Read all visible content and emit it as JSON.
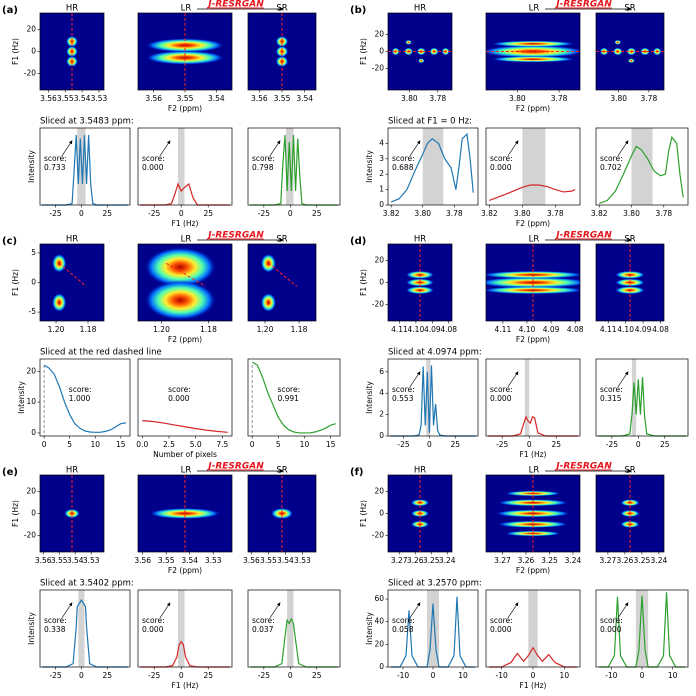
{
  "panels": [
    {
      "label": "(a)",
      "method": "J-RESRGAN",
      "slice": "Sliced at 3.5483 ppm:"
    },
    {
      "label": "(b)",
      "method": "J-RESRGAN",
      "slice": "Sliced at F1 = 0 Hz:"
    },
    {
      "label": "(c)",
      "method": "J-RESRGAN",
      "slice": "Sliced at the red dashed line"
    },
    {
      "label": "(d)",
      "method": "J-RESRGAN",
      "slice": "Sliced at 4.0974 ppm:"
    },
    {
      "label": "(e)",
      "method": "J-RESRGAN",
      "slice": "Sliced at 3.5402 ppm:"
    },
    {
      "label": "(f)",
      "method": "J-RESRGAN",
      "slice": "Sliced at 3.2570 ppm:"
    }
  ],
  "chart_data": [
    {
      "type": "heatmap",
      "title": "HR",
      "xlim": [
        3.565,
        3.527
      ],
      "xticks": [
        3.56,
        3.55,
        3.54,
        3.53
      ],
      "ylim": [
        -35,
        35
      ],
      "yticks": [
        -20,
        0,
        20
      ],
      "ylabel": "F1 (Hz)"
    },
    {
      "type": "heatmap",
      "title": "LR",
      "xlim": [
        3.565,
        3.535
      ],
      "xticks": [
        3.56,
        3.55,
        3.54
      ],
      "ylim": [
        -35,
        35
      ],
      "xlabel": "F2 (ppm)"
    },
    {
      "type": "heatmap",
      "title": "SR",
      "xlim": [
        3.565,
        3.535
      ],
      "xticks": [
        3.56,
        3.55,
        3.54
      ],
      "ylim": [
        -35,
        35
      ]
    },
    {
      "type": "line",
      "color": "#1f77b4",
      "x": [
        -38,
        -15,
        -9,
        -7,
        -5,
        -3,
        -1,
        1,
        3,
        5,
        7,
        9,
        11,
        15,
        45
      ],
      "values": [
        0,
        0,
        0.02,
        0.5,
        1,
        0.3,
        0.95,
        0.3,
        1,
        0.3,
        1,
        0.3,
        0.02,
        0,
        0
      ],
      "xlim": [
        -40,
        47
      ],
      "ylim": [
        0,
        1.1
      ],
      "xticks": [
        -25,
        0,
        25
      ],
      "span": [
        -4,
        4
      ],
      "annotation": [
        "score:",
        "0.733"
      ],
      "ylabel": "Intensity"
    },
    {
      "type": "line",
      "color": "#d62728",
      "x": [
        -38,
        -15,
        -9,
        -6,
        -3,
        0,
        3,
        7,
        11,
        15,
        45
      ],
      "values": [
        0,
        0,
        0.02,
        0.15,
        0.3,
        0.2,
        0.25,
        0.3,
        0.1,
        0,
        0
      ],
      "xlim": [
        -40,
        47
      ],
      "ylim": [
        0,
        1.1
      ],
      "xticks": [
        -25,
        0,
        25
      ],
      "span": [
        -3,
        3
      ],
      "annotation": [
        "score:",
        "0.000"
      ],
      "xlabel": "F1 (Hz)"
    },
    {
      "type": "line",
      "color": "#2ca02c",
      "x": [
        -38,
        -15,
        -9,
        -7,
        -5,
        -3,
        -1,
        1,
        3,
        5,
        7,
        9,
        11,
        15,
        45
      ],
      "values": [
        0,
        0,
        0.02,
        0.6,
        1,
        0.2,
        0.9,
        0.2,
        1,
        0.2,
        0.95,
        0.4,
        0.02,
        0,
        0
      ],
      "xlim": [
        -40,
        47
      ],
      "ylim": [
        0,
        1.1
      ],
      "xticks": [
        -25,
        0,
        25
      ],
      "span": [
        -4,
        3
      ],
      "annotation": [
        "score:",
        "0.798"
      ]
    },
    {
      "type": "heatmap",
      "title": "HR",
      "xlim": [
        3.815,
        3.77
      ],
      "xticks": [
        {
          "value": 3.8,
          "label": "3.80"
        },
        3.78
      ],
      "ylim": [
        -45,
        45
      ],
      "yticks": [
        -20,
        0,
        20
      ],
      "ylabel": "F1 (Hz)"
    },
    {
      "type": "heatmap",
      "title": "LR",
      "xlim": [
        3.815,
        3.77
      ],
      "xticks": [
        {
          "value": 3.8,
          "label": "3.80"
        },
        3.78
      ],
      "ylim": [
        -45,
        45
      ],
      "xlabel": "F2 (ppm)"
    },
    {
      "type": "heatmap",
      "title": "SR",
      "xlim": [
        3.815,
        3.77
      ],
      "xticks": [
        {
          "value": 3.8,
          "label": "3.80"
        },
        3.78
      ],
      "ylim": [
        -45,
        45
      ]
    },
    {
      "type": "line",
      "color": "#1f77b4",
      "x": [
        3.82,
        3.815,
        3.81,
        3.805,
        3.8,
        3.797,
        3.794,
        3.79,
        3.786,
        3.782,
        3.779,
        3.777,
        3.775,
        3.772,
        3.77,
        3.768
      ],
      "values": [
        0.2,
        0.4,
        1.0,
        2.2,
        3.3,
        4.0,
        4.3,
        4.0,
        3.0,
        2.4,
        1.0,
        2.5,
        4.3,
        4.6,
        3.0,
        0.8
      ],
      "xlim": [
        3.822,
        3.765
      ],
      "ylim": [
        0,
        5
      ],
      "yticks": [
        0,
        1,
        2,
        3,
        4
      ],
      "xticks": [
        3.82,
        {
          "value": 3.8,
          "label": "3.80"
        },
        3.78
      ],
      "span": [
        3.8,
        3.787
      ],
      "annotation": [
        "score:",
        "0.688"
      ],
      "ylabel": "Intensity"
    },
    {
      "type": "line",
      "color": "#d62728",
      "x": [
        3.82,
        3.81,
        3.8,
        3.795,
        3.79,
        3.785,
        3.78,
        3.775,
        3.77,
        3.768
      ],
      "values": [
        0.3,
        0.7,
        1.15,
        1.3,
        1.3,
        1.2,
        1.0,
        0.85,
        0.9,
        1.0
      ],
      "xlim": [
        3.822,
        3.765
      ],
      "ylim": [
        0,
        5
      ],
      "xticks": [
        3.82,
        {
          "value": 3.8,
          "label": "3.80"
        },
        3.78
      ],
      "span": [
        3.8,
        3.786
      ],
      "annotation": [
        "score:",
        "0.000"
      ],
      "xlabel": "F2 (ppm)"
    },
    {
      "type": "line",
      "color": "#2ca02c",
      "x": [
        3.82,
        3.815,
        3.81,
        3.805,
        3.8,
        3.797,
        3.794,
        3.79,
        3.786,
        3.782,
        3.779,
        3.777,
        3.775,
        3.772,
        3.77,
        3.768
      ],
      "values": [
        0.1,
        0.3,
        0.9,
        2.0,
        3.2,
        3.8,
        3.6,
        3.0,
        2.2,
        1.9,
        2.0,
        3.5,
        4.4,
        4.0,
        2.0,
        0.5
      ],
      "xlim": [
        3.822,
        3.765
      ],
      "ylim": [
        0,
        5
      ],
      "xticks": [
        3.82,
        {
          "value": 3.8,
          "label": "3.80"
        },
        3.78
      ],
      "span": [
        3.8,
        3.787
      ],
      "annotation": [
        "score:",
        "0.702"
      ]
    },
    {
      "type": "heatmap",
      "title": "HR",
      "xlim": [
        1.21,
        1.17
      ],
      "xticks": [
        {
          "value": 1.2,
          "label": "1.20"
        },
        1.18
      ],
      "ylim": [
        -6.5,
        6.5
      ],
      "yticks": [
        -5,
        0,
        5
      ],
      "ylabel": "F1 (Hz)"
    },
    {
      "type": "heatmap",
      "title": "LR",
      "xlim": [
        1.21,
        1.17
      ],
      "xticks": [
        {
          "value": 1.2,
          "label": "1.20"
        },
        1.18
      ],
      "ylim": [
        -6.5,
        6.5
      ],
      "xlabel": "F2 (ppm)"
    },
    {
      "type": "heatmap",
      "title": "SR",
      "xlim": [
        1.21,
        1.17
      ],
      "xticks": [
        {
          "value": 1.2,
          "label": "1.20"
        },
        1.18
      ],
      "ylim": [
        -6.5,
        6.5
      ]
    },
    {
      "type": "line",
      "color": "#1f77b4",
      "x": [
        0,
        1,
        2,
        3,
        4,
        5,
        6,
        7,
        8,
        9,
        10,
        11,
        12,
        13,
        14,
        15,
        16
      ],
      "values": [
        22,
        21,
        19,
        15,
        10,
        6,
        3,
        1.5,
        0.6,
        0.3,
        0.2,
        0.2,
        0.5,
        1,
        2,
        3,
        3.3
      ],
      "xlim": [
        -0.8,
        16.8
      ],
      "ylim": [
        -1,
        24
      ],
      "yticks": [
        0,
        10,
        20
      ],
      "xticks": [
        0,
        5,
        10,
        15
      ],
      "annotation": [
        "score:",
        "1.000"
      ],
      "ylabel": "Intensity"
    },
    {
      "type": "line",
      "color": "#d62728",
      "x": [
        0,
        1,
        2,
        3,
        4,
        5,
        6,
        7,
        8
      ],
      "values": [
        4,
        3.7,
        3.2,
        2.6,
        2,
        1.4,
        0.9,
        0.5,
        0.2
      ],
      "xlim": [
        -0.4,
        8.4
      ],
      "ylim": [
        -1,
        24
      ],
      "xticks": [
        {
          "value": 0,
          "label": "0.0"
        },
        2.5,
        {
          "value": 5,
          "label": "5.0"
        },
        7.5
      ],
      "annotation": [
        "score:",
        "0.000"
      ],
      "xlabel": "Number of pixels"
    },
    {
      "type": "line",
      "color": "#2ca02c",
      "x": [
        0,
        1,
        2,
        3,
        4,
        5,
        6,
        7,
        8,
        9,
        10,
        11,
        12,
        13,
        14,
        15,
        16
      ],
      "values": [
        23,
        22,
        18,
        13,
        9,
        5,
        2.5,
        1,
        0.3,
        0,
        0,
        0,
        0.3,
        0.8,
        1.5,
        2.5,
        3
      ],
      "xlim": [
        -0.8,
        16.8
      ],
      "ylim": [
        -1,
        24
      ],
      "xticks": [
        0,
        5,
        10,
        15
      ],
      "annotation": [
        "score:",
        "0.991"
      ]
    },
    {
      "type": "heatmap",
      "title": "HR",
      "xlim": [
        4.117,
        4.078
      ],
      "xticks": [
        4.11,
        {
          "value": 4.1,
          "label": "4.10"
        },
        4.09,
        {
          "value": 4.08,
          "label": "4.08"
        }
      ],
      "ylim": [
        -35,
        35
      ],
      "yticks": [
        -20,
        0,
        20
      ],
      "ylabel": "F1 (Hz)"
    },
    {
      "type": "heatmap",
      "title": "LR",
      "xlim": [
        4.117,
        4.078
      ],
      "xticks": [
        4.11,
        {
          "value": 4.1,
          "label": "4.10"
        },
        4.09,
        {
          "value": 4.08,
          "label": "4.08"
        }
      ],
      "ylim": [
        -35,
        35
      ],
      "xlabel": "F2 (ppm)"
    },
    {
      "type": "heatmap",
      "title": "SR",
      "xlim": [
        4.117,
        4.078
      ],
      "xticks": [
        4.11,
        {
          "value": 4.1,
          "label": "4.10"
        },
        4.09,
        {
          "value": 4.08,
          "label": "4.08"
        }
      ],
      "ylim": [
        -35,
        35
      ]
    },
    {
      "type": "line",
      "color": "#1f77b4",
      "x": [
        -38,
        -15,
        -10,
        -8,
        -6,
        -4,
        -2,
        0,
        2,
        4,
        6,
        8,
        10,
        15,
        45
      ],
      "values": [
        0,
        0,
        0.1,
        1,
        6.5,
        1,
        6,
        0.3,
        6.6,
        1,
        3,
        0.5,
        0.1,
        0,
        0
      ],
      "xlim": [
        -40,
        47
      ],
      "ylim": [
        0,
        7.2
      ],
      "yticks": [
        0,
        2,
        4,
        6
      ],
      "xticks": [
        -25,
        0,
        25
      ],
      "span": [
        -3,
        1
      ],
      "annotation": [
        "score:",
        "0.553"
      ],
      "ylabel": "Intensity"
    },
    {
      "type": "line",
      "color": "#d62728",
      "x": [
        -38,
        -15,
        -8,
        -5,
        -3,
        -1,
        1,
        3,
        5,
        8,
        15,
        45
      ],
      "values": [
        0,
        0,
        0.2,
        1.2,
        1.8,
        1.4,
        1.2,
        1.8,
        1.7,
        0.3,
        0,
        0
      ],
      "xlim": [
        -40,
        47
      ],
      "ylim": [
        0,
        7.2
      ],
      "xticks": [
        -25,
        0,
        25
      ],
      "span": [
        -4,
        0
      ],
      "annotation": [
        "score:",
        "0.000"
      ],
      "xlabel": "F1 (Hz)"
    },
    {
      "type": "line",
      "color": "#2ca02c",
      "x": [
        -38,
        -15,
        -8,
        -6,
        -4,
        -2,
        0,
        2,
        4,
        6,
        8,
        15,
        45
      ],
      "values": [
        0,
        0,
        0.2,
        2,
        5,
        2,
        5.3,
        2,
        5.5,
        1.8,
        0.2,
        0,
        0
      ],
      "xlim": [
        -40,
        47
      ],
      "ylim": [
        0,
        7.2
      ],
      "xticks": [
        -25,
        0,
        25
      ],
      "span": [
        -6,
        -2
      ],
      "annotation": [
        "score:",
        "0.315"
      ]
    },
    {
      "type": "heatmap",
      "title": "HR",
      "xlim": [
        3.562,
        3.522
      ],
      "xticks": [
        3.56,
        3.55,
        3.54,
        3.53
      ],
      "ylim": [
        -35,
        35
      ],
      "yticks": [
        -20,
        0,
        20
      ],
      "ylabel": "F1 (Hz)"
    },
    {
      "type": "heatmap",
      "title": "LR",
      "xlim": [
        3.562,
        3.522
      ],
      "xticks": [
        3.56,
        3.55,
        3.54,
        3.53
      ],
      "ylim": [
        -35,
        35
      ],
      "xlabel": "F2 (ppm)"
    },
    {
      "type": "heatmap",
      "title": "SR",
      "xlim": [
        3.562,
        3.522
      ],
      "xticks": [
        3.56,
        3.55,
        3.54,
        3.53
      ],
      "ylim": [
        -35,
        35
      ]
    },
    {
      "type": "line",
      "color": "#1f77b4",
      "x": [
        -38,
        -15,
        -8,
        -5,
        -4,
        -2,
        0,
        2,
        4,
        5,
        8,
        15,
        45
      ],
      "values": [
        0,
        0,
        0.05,
        0.6,
        0.9,
        0.95,
        1,
        0.95,
        0.9,
        0.6,
        0.05,
        0,
        0
      ],
      "xlim": [
        -40,
        47
      ],
      "ylim": [
        0,
        1.15
      ],
      "xticks": [
        -25,
        0,
        25
      ],
      "span": [
        -3,
        3
      ],
      "annotation": [
        "score:",
        "0.338"
      ],
      "ylabel": "Intensity"
    },
    {
      "type": "line",
      "color": "#d62728",
      "x": [
        -38,
        -15,
        -8,
        -4,
        -2,
        0,
        2,
        4,
        8,
        15,
        45
      ],
      "values": [
        0,
        0,
        0.02,
        0.15,
        0.33,
        0.38,
        0.33,
        0.15,
        0.02,
        0,
        0
      ],
      "xlim": [
        -40,
        47
      ],
      "ylim": [
        0,
        1.15
      ],
      "xticks": [
        -25,
        0,
        25
      ],
      "span": [
        -3,
        3
      ],
      "annotation": [
        "score:",
        "0.000"
      ],
      "xlabel": "F1 (Hz)"
    },
    {
      "type": "line",
      "color": "#2ca02c",
      "x": [
        -38,
        -15,
        -8,
        -5,
        -3,
        -1,
        1,
        3,
        5,
        8,
        15,
        45
      ],
      "values": [
        0,
        0,
        0.05,
        0.45,
        0.7,
        0.65,
        0.72,
        0.65,
        0.4,
        0.05,
        0,
        0
      ],
      "xlim": [
        -40,
        47
      ],
      "ylim": [
        0,
        1.15
      ],
      "xticks": [
        -25,
        0,
        25
      ],
      "span": [
        -3,
        3
      ],
      "annotation": [
        "score:",
        "0.037"
      ]
    },
    {
      "type": "heatmap",
      "title": "HR",
      "xlim": [
        3.277,
        3.237
      ],
      "xticks": [
        3.27,
        3.26,
        3.25,
        3.24
      ],
      "ylim": [
        -35,
        35
      ],
      "yticks": [
        -20,
        0,
        20
      ],
      "ylabel": "F1 (Hz)"
    },
    {
      "type": "heatmap",
      "title": "LR",
      "xlim": [
        3.277,
        3.237
      ],
      "xticks": [
        3.27,
        3.26,
        3.25,
        3.24
      ],
      "ylim": [
        -35,
        35
      ],
      "xlabel": "F2 (ppm)"
    },
    {
      "type": "heatmap",
      "title": "SR",
      "xlim": [
        3.277,
        3.237
      ],
      "xticks": [
        3.27,
        3.26,
        3.25,
        3.24
      ],
      "ylim": [
        -35,
        35
      ]
    },
    {
      "type": "line",
      "color": "#1f77b4",
      "x": [
        -14,
        -11,
        -9,
        -8,
        -7,
        -5,
        -2,
        -1,
        0,
        1,
        2,
        5,
        7,
        8,
        9,
        11,
        14
      ],
      "values": [
        0,
        0,
        10,
        50,
        10,
        0,
        0,
        15,
        56,
        15,
        0,
        0,
        10,
        62,
        10,
        0,
        0
      ],
      "xlim": [
        -15,
        15
      ],
      "ylim": [
        0,
        68
      ],
      "yticks": [
        0,
        20,
        40,
        60
      ],
      "xticks": [
        -10,
        0,
        10
      ],
      "span": [
        -2,
        2
      ],
      "annotation": [
        "score:",
        "0.058"
      ],
      "ylabel": "Intensity"
    },
    {
      "type": "line",
      "color": "#d62728",
      "x": [
        -14,
        -10,
        -7,
        -5,
        -3,
        -1.5,
        0,
        1.5,
        3,
        5,
        7,
        10,
        14
      ],
      "values": [
        0,
        0,
        4,
        12,
        5,
        10,
        17,
        10,
        5,
        11,
        4,
        0,
        0
      ],
      "xlim": [
        -15,
        15
      ],
      "ylim": [
        0,
        68
      ],
      "xticks": [
        -10,
        0,
        10
      ],
      "span": [
        -1.5,
        1.5
      ],
      "annotation": [
        "score:",
        "0.000"
      ],
      "xlabel": "F1 (Hz)"
    },
    {
      "type": "line",
      "color": "#2ca02c",
      "x": [
        -14,
        -11,
        -9,
        -8,
        -7,
        -5,
        -2,
        -1,
        0,
        1,
        2,
        5,
        7,
        8,
        9,
        11,
        14
      ],
      "values": [
        0,
        0,
        10,
        62,
        10,
        0,
        0,
        15,
        63,
        15,
        0,
        0,
        10,
        66,
        10,
        0,
        0
      ],
      "xlim": [
        -15,
        15
      ],
      "ylim": [
        0,
        68
      ],
      "xticks": [
        -10,
        0,
        10
      ],
      "span": [
        -2,
        2
      ],
      "annotation": [
        "score:",
        "0.000"
      ]
    }
  ]
}
